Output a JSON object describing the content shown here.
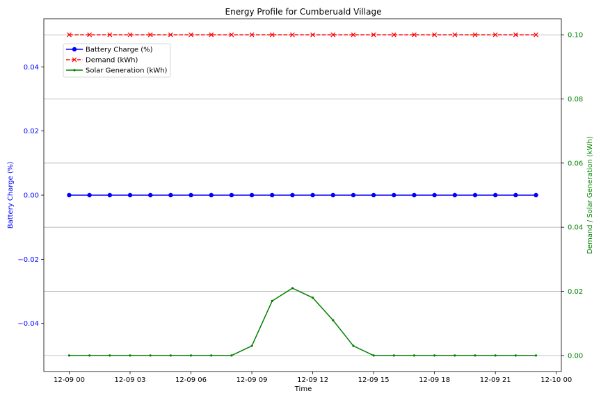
{
  "chart_data": {
    "type": "line",
    "title": "Energy Profile for Cumberuald Village",
    "xlabel": "Time",
    "ylabel_left": "Battery Charge (%)",
    "ylabel_right": "Demand / Solar Generation (kWh)",
    "x_hours": [
      0,
      1,
      2,
      3,
      4,
      5,
      6,
      7,
      8,
      9,
      10,
      11,
      12,
      13,
      14,
      15,
      16,
      17,
      18,
      19,
      20,
      21,
      22,
      23
    ],
    "x_tick_labels": [
      "12-09 00",
      "12-09 03",
      "12-09 06",
      "12-09 09",
      "12-09 12",
      "12-09 15",
      "12-09 18",
      "12-09 21",
      "12-10 00"
    ],
    "xlim_hours": [
      -1.25,
      24.25
    ],
    "ylim_left": [
      -0.055,
      0.055
    ],
    "ylim_right": [
      -0.005,
      0.105
    ],
    "left_ticks": [
      "0.04",
      "0.02",
      "0.00",
      "−0.02",
      "−0.04"
    ],
    "left_tick_values": [
      0.04,
      0.02,
      0.0,
      -0.02,
      -0.04
    ],
    "right_ticks": [
      "0.10",
      "0.08",
      "0.06",
      "0.04",
      "0.02",
      "0.00"
    ],
    "right_tick_values": [
      0.1,
      0.08,
      0.06,
      0.04,
      0.02,
      0.0
    ],
    "grid": "horizontal on right axis",
    "legend_position": "upper-left",
    "series": [
      {
        "name": "Battery Charge (%)",
        "axis": "left",
        "color": "#0000ff",
        "marker": "circle",
        "linestyle": "solid",
        "values": [
          0,
          0,
          0,
          0,
          0,
          0,
          0,
          0,
          0,
          0,
          0,
          0,
          0,
          0,
          0,
          0,
          0,
          0,
          0,
          0,
          0,
          0,
          0,
          0
        ]
      },
      {
        "name": "Demand (kWh)",
        "axis": "right",
        "color": "#ff0000",
        "marker": "x",
        "linestyle": "dashed",
        "values": [
          0.1,
          0.1,
          0.1,
          0.1,
          0.1,
          0.1,
          0.1,
          0.1,
          0.1,
          0.1,
          0.1,
          0.1,
          0.1,
          0.1,
          0.1,
          0.1,
          0.1,
          0.1,
          0.1,
          0.1,
          0.1,
          0.1,
          0.1,
          0.1
        ]
      },
      {
        "name": "Solar Generation (kWh)",
        "axis": "right",
        "color": "#008000",
        "marker": "dot",
        "linestyle": "solid",
        "values": [
          0,
          0,
          0,
          0,
          0,
          0,
          0,
          0,
          0,
          0.003,
          0.017,
          0.021,
          0.018,
          0.011,
          0.003,
          0,
          0,
          0,
          0,
          0,
          0,
          0,
          0,
          0
        ]
      }
    ]
  }
}
